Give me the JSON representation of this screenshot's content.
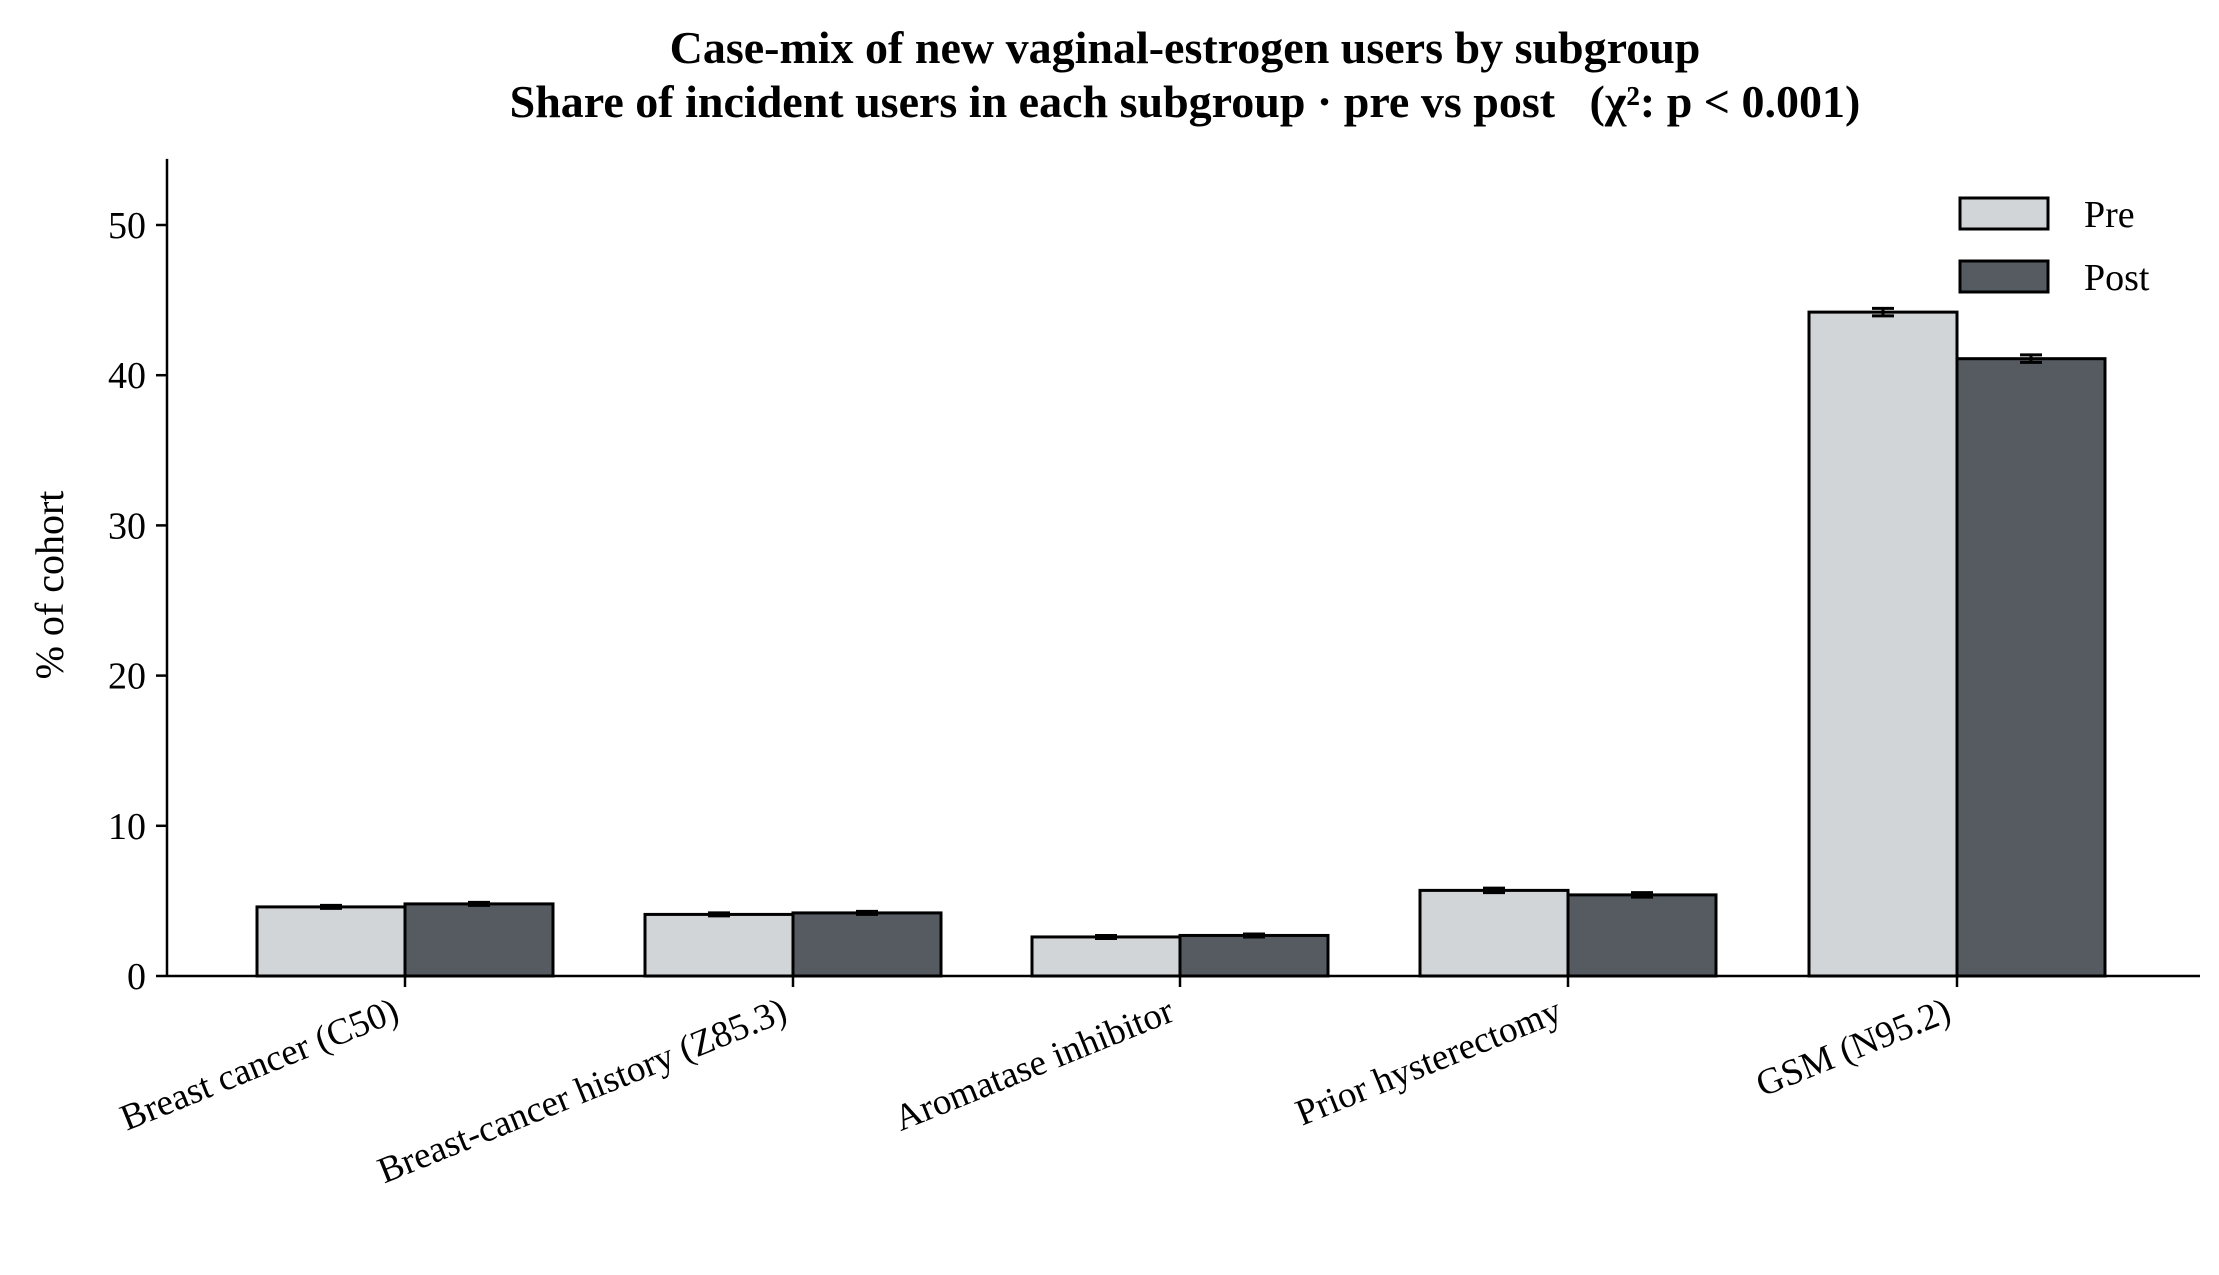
{
  "chart_data": {
    "type": "bar",
    "title": "Case-mix of new vaginal-estrogen users by subgroup",
    "subtitle": "Share of incident users in each subgroup · pre vs post   (χ²: p < 0.001)",
    "xlabel": "",
    "ylabel": "% of cohort",
    "ylim": [
      0,
      54.4
    ],
    "yticks": [
      0,
      10,
      20,
      30,
      40,
      50
    ],
    "categories": [
      "Breast cancer (C50)",
      "Breast-cancer history (Z85.3)",
      "Aromatase inhibitor",
      "Prior hysterectomy",
      "GSM (N95.2)"
    ],
    "series": [
      {
        "name": "Pre",
        "color": "#d2d5d8",
        "values": [
          4.6,
          4.1,
          2.6,
          5.7,
          44.2
        ],
        "errors": [
          0.1,
          0.1,
          0.1,
          0.15,
          0.25
        ]
      },
      {
        "name": "Post",
        "color": "#565b62",
        "values": [
          4.8,
          4.2,
          2.7,
          5.4,
          41.1
        ],
        "errors": [
          0.1,
          0.1,
          0.1,
          0.15,
          0.25
        ]
      }
    ],
    "legend_position": "top-right",
    "grid": false
  }
}
